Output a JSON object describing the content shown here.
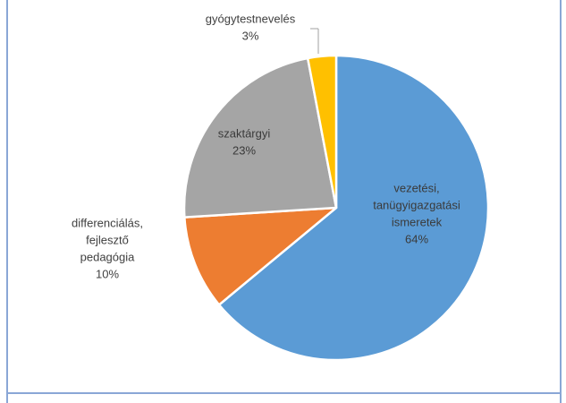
{
  "chart_data": {
    "type": "pie",
    "title": "",
    "slices": [
      {
        "label": [
          "vezetési,",
          "tanügyigazgatási",
          "ismeretek"
        ],
        "value": 64,
        "pct_label": "64%",
        "color": "#5b9bd5"
      },
      {
        "label": [
          "differenciálás,",
          "fejlesztő",
          "pedagógia"
        ],
        "value": 10,
        "pct_label": "10%",
        "color": "#ed7d31"
      },
      {
        "label": [
          "szaktárgyi"
        ],
        "value": 23,
        "pct_label": "23%",
        "color": "#a5a5a5"
      },
      {
        "label": [
          "gyógytestnevelés"
        ],
        "value": 3,
        "pct_label": "3%",
        "color": "#ffc000"
      }
    ],
    "legend": "none",
    "start_angle_deg": 0,
    "direction": "clockwise"
  }
}
